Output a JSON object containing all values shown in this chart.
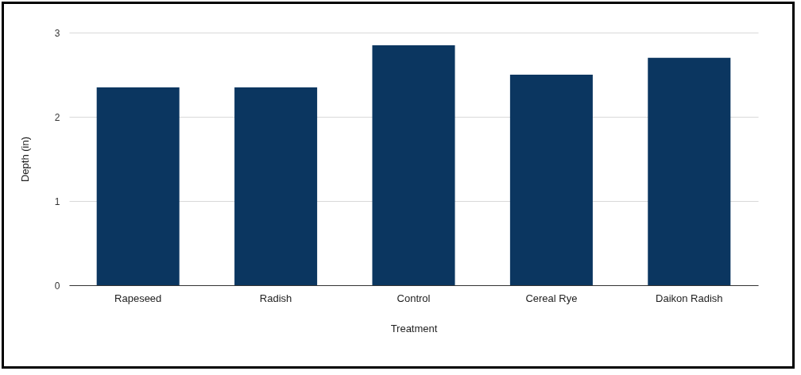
{
  "chart_data": {
    "type": "bar",
    "xlabel": "Treatment",
    "ylabel": "Depth (in)",
    "categories": [
      "Rapeseed",
      "Radish",
      "Control",
      "Cereal Rye",
      "Daikon Radish"
    ],
    "values": [
      2.35,
      2.35,
      2.85,
      2.5,
      2.7
    ],
    "color": "#0b3660",
    "ylim": [
      0,
      3
    ],
    "yticks": [
      0,
      1,
      2,
      3
    ],
    "grid": "y"
  }
}
